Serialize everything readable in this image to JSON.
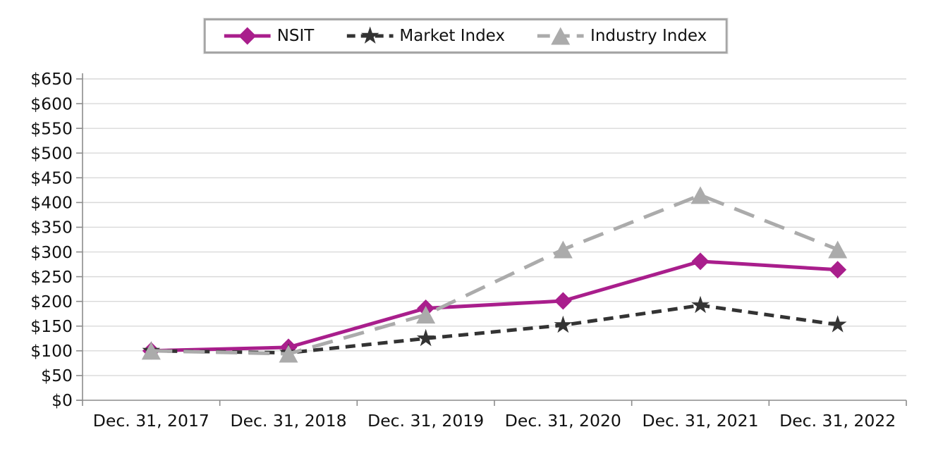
{
  "chart_data": {
    "type": "line",
    "title": "",
    "categories": [
      "Dec. 31, 2017",
      "Dec. 31, 2018",
      "Dec. 31, 2019",
      "Dec. 31, 2020",
      "Dec. 31, 2021",
      "Dec. 31, 2022"
    ],
    "series": [
      {
        "name": "NSIT",
        "values": [
          100,
          107,
          186,
          201,
          281,
          264
        ],
        "color": "#A91E8C",
        "line_style": "solid",
        "marker": "diamond"
      },
      {
        "name": "Market Index",
        "values": [
          100,
          96,
          125,
          152,
          192,
          153
        ],
        "color": "#333333",
        "line_style": "dashed",
        "marker": "star"
      },
      {
        "name": "Industry Index",
        "values": [
          100,
          94,
          173,
          305,
          415,
          305
        ],
        "color": "#ABABAB",
        "line_style": "long-dash",
        "marker": "triangle-up"
      }
    ],
    "y_axis": {
      "prefix": "$",
      "min": 0,
      "max": 650,
      "step": 50,
      "tick_labels": [
        "$0",
        "$50",
        "$100",
        "$150",
        "$200",
        "$250",
        "$300",
        "$350",
        "$400",
        "$450",
        "$500",
        "$550",
        "$600",
        "$650"
      ]
    },
    "x_axis": {
      "tick_labels": [
        "Dec. 31, 2017",
        "Dec. 31, 2018",
        "Dec. 31, 2019",
        "Dec. 31, 2020",
        "Dec. 31, 2021",
        "Dec. 31, 2022"
      ]
    },
    "legend": {
      "position": "top-center",
      "entries": [
        "NSIT",
        "Market Index",
        "Industry Index"
      ]
    },
    "grid": true,
    "colors": {
      "gridline": "#D9D9D9",
      "axis": "#8C8C8C",
      "text": "#111111"
    }
  }
}
